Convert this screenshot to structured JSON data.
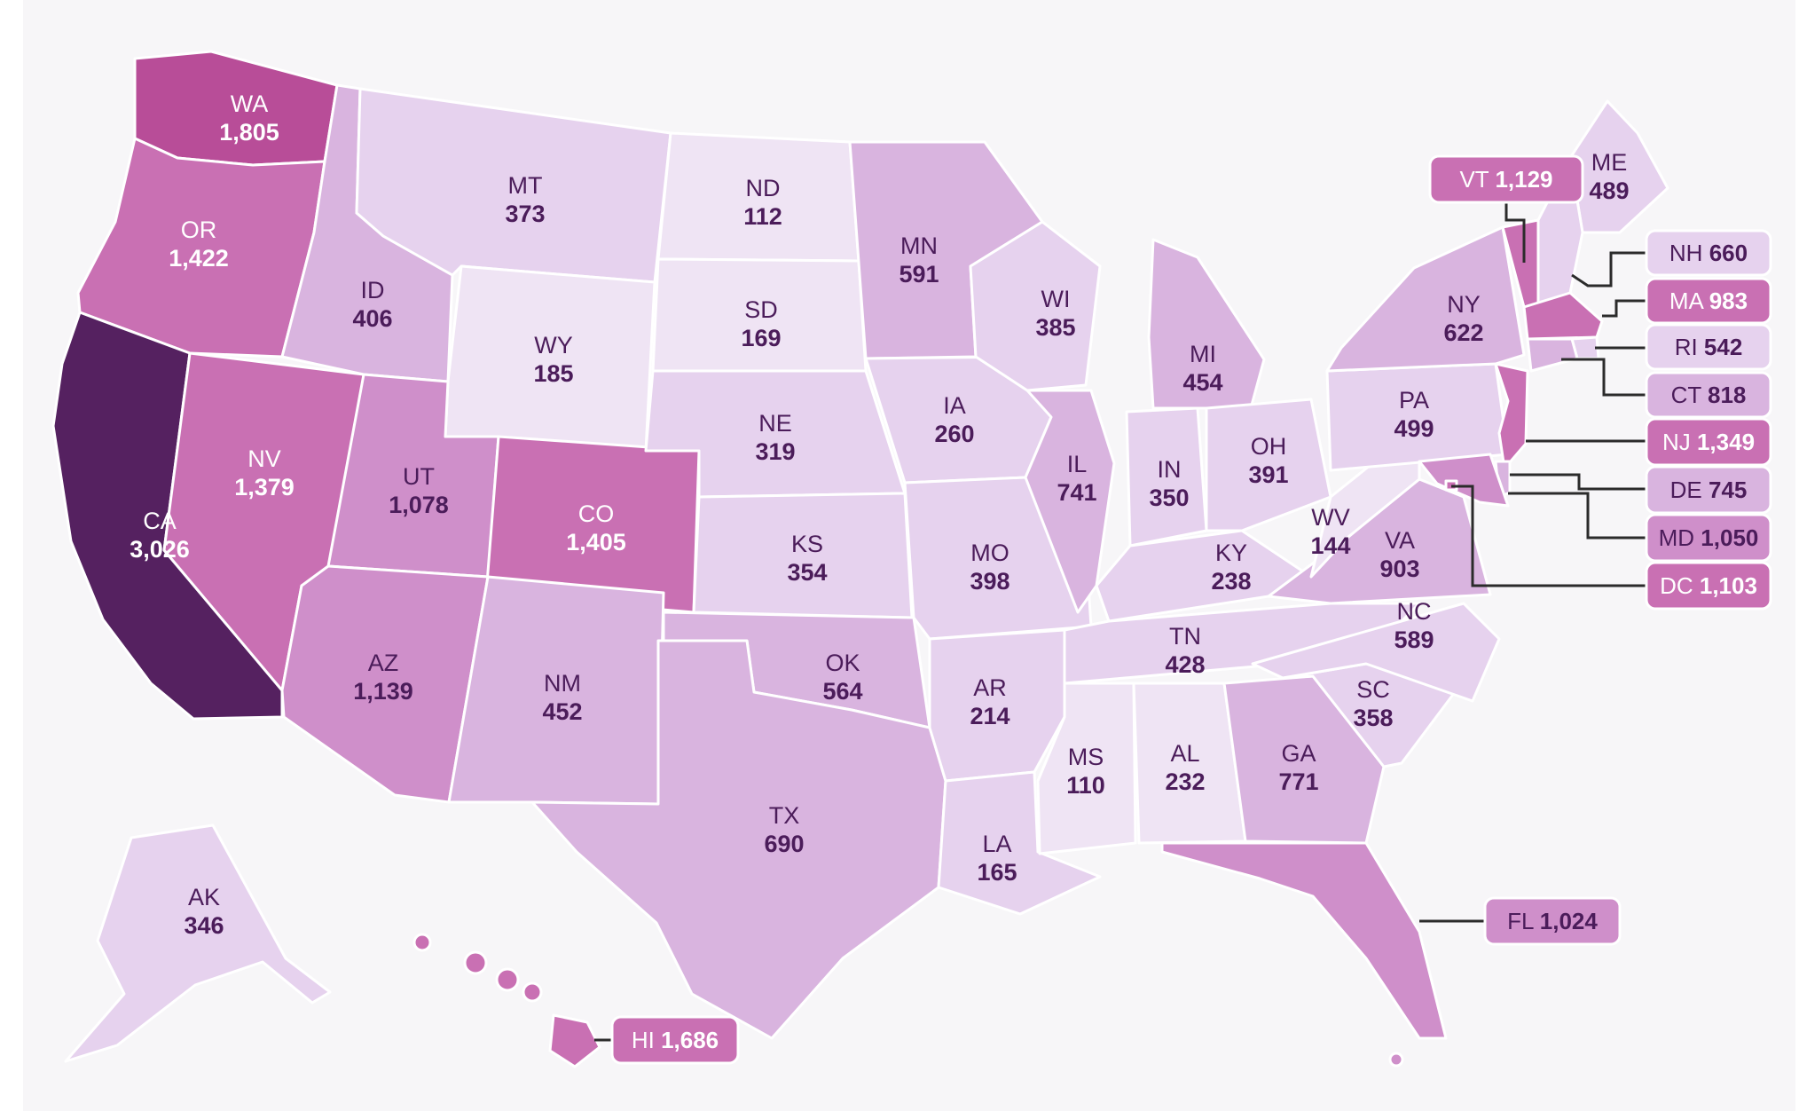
{
  "colors": {
    "background": "#f7f6f8",
    "page": "#ffffff",
    "tier1": "#efe4f4",
    "tier2": "#e6d2ee",
    "tier3": "#d9b4df",
    "tier4": "#cf8fca",
    "tier5": "#c970b3",
    "tier6": "#b84d98",
    "tier7": "#552160",
    "label_dark": "#4b1c5a",
    "label_light": "#ffffff"
  },
  "states": [
    {
      "abbr": "WA",
      "value": "1,805"
    },
    {
      "abbr": "OR",
      "value": "1,422"
    },
    {
      "abbr": "CA",
      "value": "3,026"
    },
    {
      "abbr": "NV",
      "value": "1,379"
    },
    {
      "abbr": "ID",
      "value": "406"
    },
    {
      "abbr": "MT",
      "value": "373"
    },
    {
      "abbr": "WY",
      "value": "185"
    },
    {
      "abbr": "UT",
      "value": "1,078"
    },
    {
      "abbr": "CO",
      "value": "1,405"
    },
    {
      "abbr": "AZ",
      "value": "1,139"
    },
    {
      "abbr": "NM",
      "value": "452"
    },
    {
      "abbr": "ND",
      "value": "112"
    },
    {
      "abbr": "SD",
      "value": "169"
    },
    {
      "abbr": "NE",
      "value": "319"
    },
    {
      "abbr": "KS",
      "value": "354"
    },
    {
      "abbr": "OK",
      "value": "564"
    },
    {
      "abbr": "TX",
      "value": "690"
    },
    {
      "abbr": "MN",
      "value": "591"
    },
    {
      "abbr": "IA",
      "value": "260"
    },
    {
      "abbr": "MO",
      "value": "398"
    },
    {
      "abbr": "AR",
      "value": "214"
    },
    {
      "abbr": "LA",
      "value": "165"
    },
    {
      "abbr": "WI",
      "value": "385"
    },
    {
      "abbr": "IL",
      "value": "741"
    },
    {
      "abbr": "MI",
      "value": "454"
    },
    {
      "abbr": "IN",
      "value": "350"
    },
    {
      "abbr": "OH",
      "value": "391"
    },
    {
      "abbr": "KY",
      "value": "238"
    },
    {
      "abbr": "TN",
      "value": "428"
    },
    {
      "abbr": "MS",
      "value": "110"
    },
    {
      "abbr": "AL",
      "value": "232"
    },
    {
      "abbr": "GA",
      "value": "771"
    },
    {
      "abbr": "FL",
      "value": "1,024"
    },
    {
      "abbr": "SC",
      "value": "358"
    },
    {
      "abbr": "NC",
      "value": "589"
    },
    {
      "abbr": "VA",
      "value": "903"
    },
    {
      "abbr": "WV",
      "value": "144"
    },
    {
      "abbr": "PA",
      "value": "499"
    },
    {
      "abbr": "NY",
      "value": "622"
    },
    {
      "abbr": "ME",
      "value": "489"
    },
    {
      "abbr": "VT",
      "value": "1,129"
    },
    {
      "abbr": "NH",
      "value": "660"
    },
    {
      "abbr": "MA",
      "value": "983"
    },
    {
      "abbr": "RI",
      "value": "542"
    },
    {
      "abbr": "CT",
      "value": "818"
    },
    {
      "abbr": "NJ",
      "value": "1,349"
    },
    {
      "abbr": "DE",
      "value": "745"
    },
    {
      "abbr": "MD",
      "value": "1,050"
    },
    {
      "abbr": "DC",
      "value": "1,103"
    },
    {
      "abbr": "AK",
      "value": "346"
    },
    {
      "abbr": "HI",
      "value": "1,686"
    }
  ]
}
